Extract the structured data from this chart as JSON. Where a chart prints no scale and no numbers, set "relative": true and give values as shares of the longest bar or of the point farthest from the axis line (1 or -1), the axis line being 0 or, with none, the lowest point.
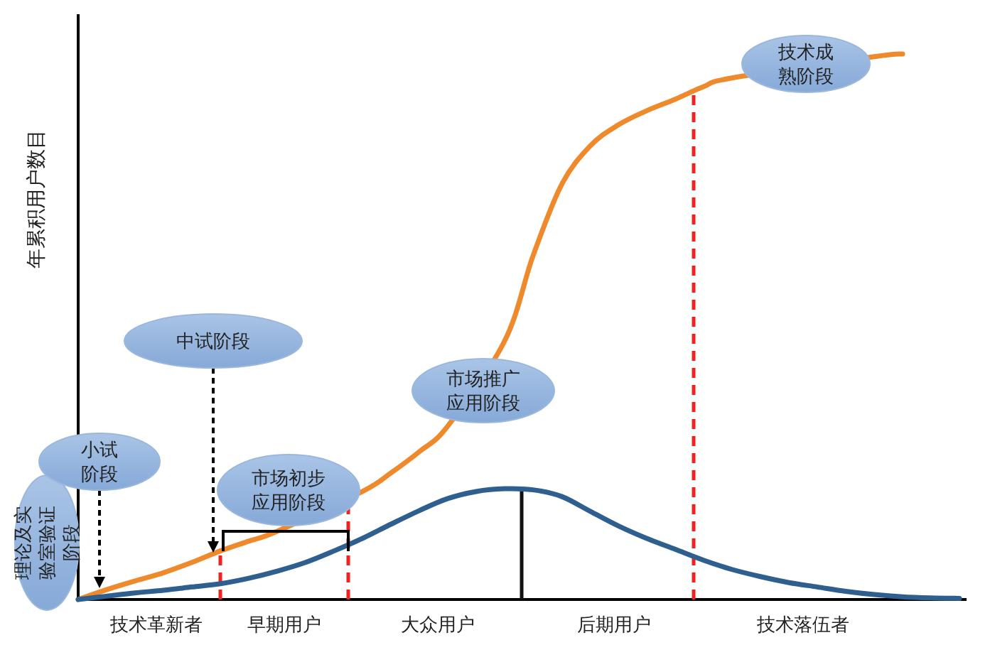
{
  "chart_data": {
    "type": "line",
    "relative": true,
    "ylabel": "年累积用户数目",
    "categories": [
      null,
      null,
      null,
      null,
      null,
      null,
      null,
      null,
      null,
      null,
      null,
      null,
      null,
      null,
      null,
      null,
      null,
      null,
      null,
      null,
      null,
      null,
      null,
      null,
      null,
      null,
      null,
      null,
      null,
      null,
      null,
      null
    ],
    "series": [
      {
        "color": "#ee8a2c",
        "values": [
          0,
          0.018,
          0.034,
          0.049,
          0.068,
          0.089,
          0.107,
          0.125,
          null,
          null,
          0.198,
          0.232,
          0.271,
          0.318,
          null,
          0.474,
          0.63,
          0.76,
          0.831,
          0.87,
          0.896,
          0.917,
          0.94,
          0.956,
          null,
          null,
          null,
          null,
          0.995,
          1,
          null,
          null
        ]
      },
      {
        "color": "#2f5f8f",
        "values": [
          0,
          0.006,
          0.012,
          0.017,
          0.023,
          0.029,
          0.039,
          0.052,
          0.068,
          0.089,
          0.112,
          0.138,
          0.163,
          0.185,
          0.198,
          0.203,
          0.201,
          0.189,
          0.162,
          0.135,
          0.112,
          0.092,
          0.072,
          0.055,
          0.042,
          0.031,
          0.023,
          0.015,
          0.009,
          0.005,
          0.003,
          0.002
        ]
      }
    ],
    "annotations": [
      "技术革新者",
      "早期用户",
      "大众用户",
      "后期用户",
      "技术落伍者",
      "理论及实验室验证阶段",
      "小试阶段",
      "中试阶段",
      "市场初步应用阶段",
      "市场推广应用阶段",
      "技术成熟阶段"
    ],
    "marker": "none",
    "line_style": "solid"
  }
}
